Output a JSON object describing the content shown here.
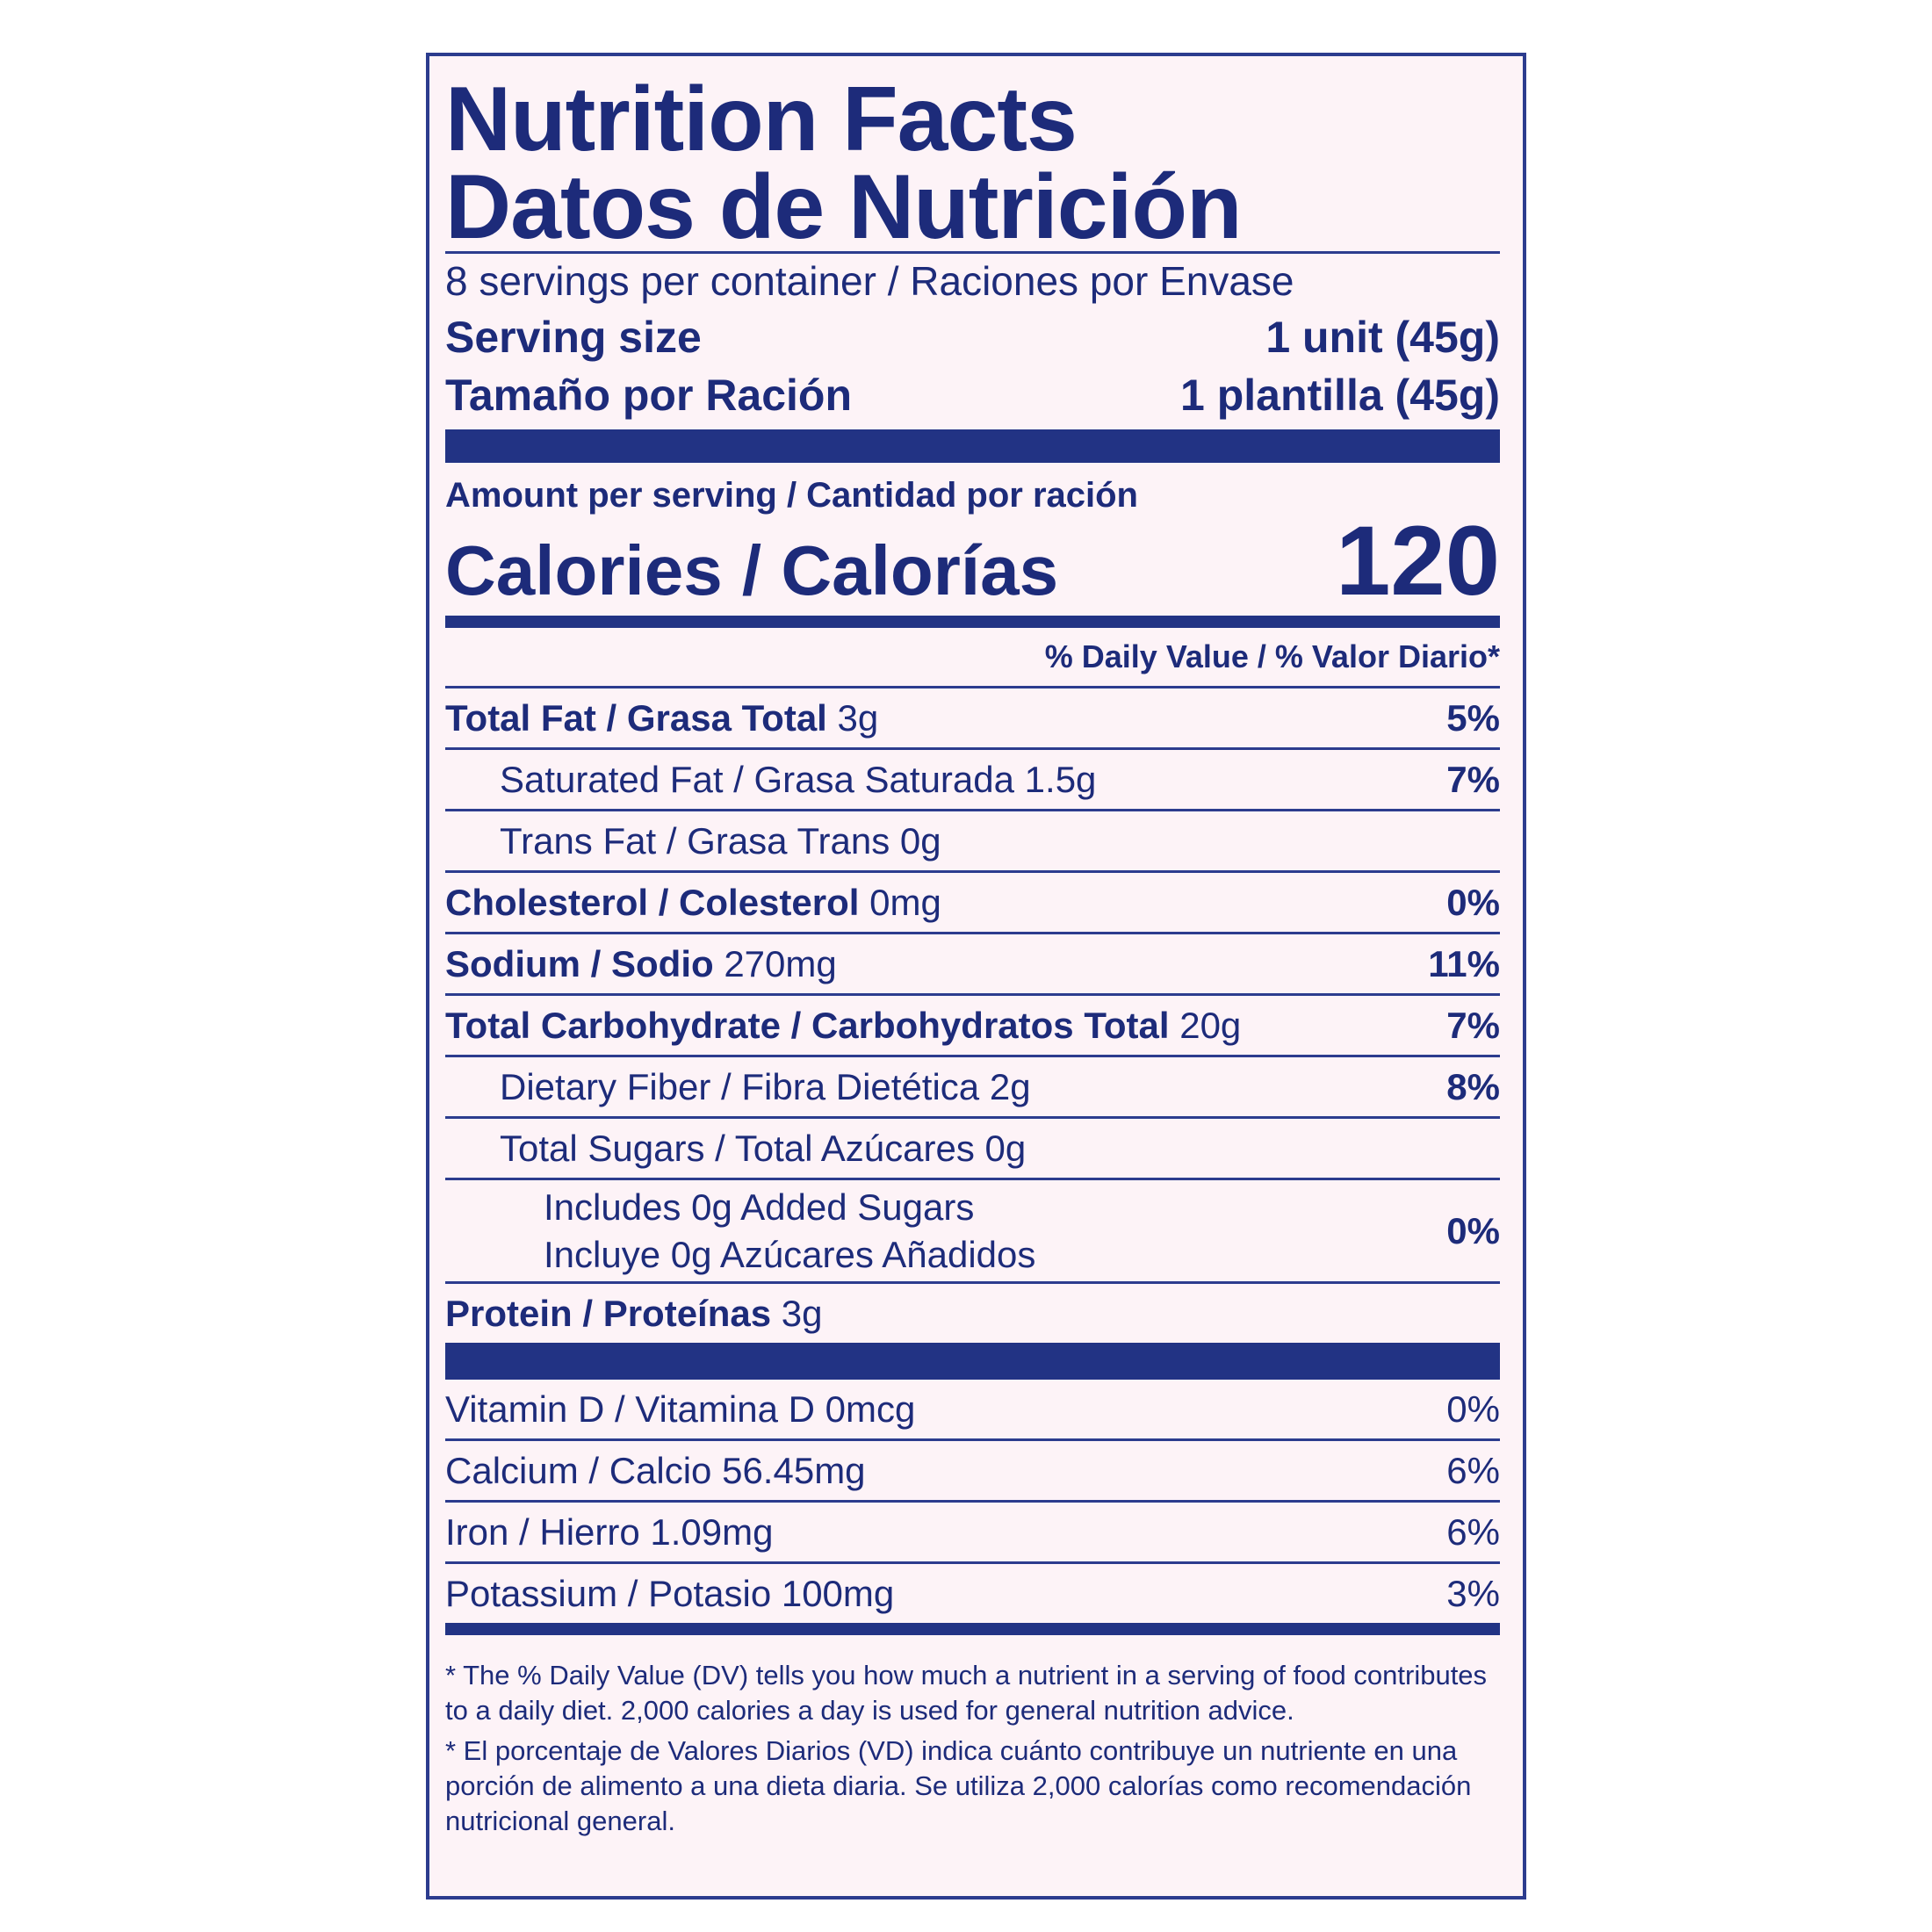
{
  "header": {
    "title": "Nutrition Facts",
    "title_es": "Datos de Nutrición"
  },
  "servings": "8 servings per container / Raciones por Envase",
  "serving_size": [
    {
      "label": "Serving size",
      "value": "1 unit (45g)"
    },
    {
      "label": "Tamaño por Ración",
      "value": "1 plantilla (45g)"
    }
  ],
  "calories": {
    "heading": "Amount per serving / Cantidad por ración",
    "label": "Calories / Calorías",
    "value": "120"
  },
  "daily_value_heading": "% Daily Value / % Valor Diario*",
  "nutrients": [
    {
      "name": "Total Fat / Grasa Total",
      "amount": "3g",
      "dv": "5%"
    },
    {
      "name": "Saturated Fat / Grasa Saturada",
      "amount": "1.5g",
      "dv": "7%"
    },
    {
      "name": "Trans Fat / Grasa Trans",
      "amount": "0g"
    },
    {
      "name": "Cholesterol / Colesterol",
      "amount": "0mg",
      "dv": "0%"
    },
    {
      "name": "Sodium / Sodio",
      "amount": "270mg",
      "dv": "11%"
    },
    {
      "name": "Total Carbohydrate / Carbohydratos Total",
      "amount": "20g",
      "dv": "7%"
    },
    {
      "name": "Dietary Fiber / Fibra Dietética",
      "amount": "2g",
      "dv": "8%"
    },
    {
      "name": "Total Sugars / Total Azúcares",
      "amount": "0g"
    },
    {
      "lines": [
        "Includes 0g Added Sugars",
        "Incluye 0g Azúcares Añadidos"
      ],
      "dv": "0%"
    },
    {
      "name": "Protein / Proteínas",
      "amount": "3g"
    }
  ],
  "vitamins": [
    {
      "name": "Vitamin D / Vitamina D",
      "amount": "0mcg",
      "dv": "0%"
    },
    {
      "name": "Calcium / Calcio",
      "amount": "56.45mg",
      "dv": "6%"
    },
    {
      "name": "Iron / Hierro",
      "amount": "1.09mg",
      "dv": "6%"
    },
    {
      "name": "Potassium / Potasio",
      "amount": "100mg",
      "dv": "3%"
    }
  ],
  "footnotes": [
    "* The % Daily Value (DV) tells you how much a nutrient in a serving of food contributes to a daily diet. 2,000 calories a day is used for general nutrition advice.",
    "* El porcentaje de Valores Diarios (VD) indica cuánto contribuye un nutriente en una porción de alimento a una dieta diaria. Se utiliza 2,000 calorías como recomendación nutricional general."
  ]
}
